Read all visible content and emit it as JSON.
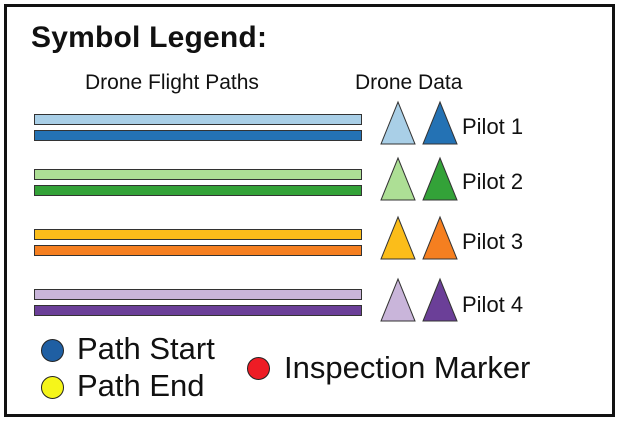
{
  "title": "Symbol Legend:",
  "headers": {
    "paths": "Drone Flight Paths",
    "data": "Drone Data"
  },
  "pilots": [
    {
      "label": "Pilot 1",
      "light": "#a9cfe7",
      "dark": "#2472b4"
    },
    {
      "label": "Pilot 2",
      "light": "#addf95",
      "dark": "#33a238"
    },
    {
      "label": "Pilot 3",
      "light": "#fbbd1a",
      "dark": "#f57f20"
    },
    {
      "label": "Pilot 4",
      "light": "#c9b5da",
      "dark": "#6b3f98"
    }
  ],
  "markers": [
    {
      "label": "Path Start",
      "color": "#1f5fa3"
    },
    {
      "label": "Path End",
      "color": "#f5f51a"
    },
    {
      "label": "Inspection Marker",
      "color": "#ee1c25"
    }
  ]
}
